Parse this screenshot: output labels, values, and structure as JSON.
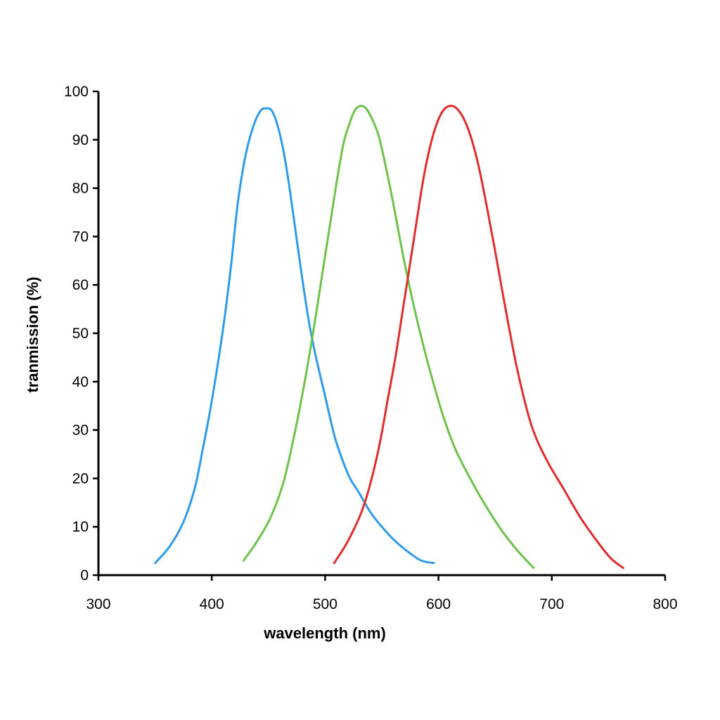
{
  "chart_data": {
    "type": "line",
    "xlabel": "wavelength (nm)",
    "ylabel": "tranmission (%)",
    "xlim": [
      300,
      800
    ],
    "ylim": [
      0,
      100
    ],
    "xticks": [
      300,
      400,
      500,
      600,
      700,
      800
    ],
    "yticks": [
      0,
      10,
      20,
      30,
      40,
      50,
      60,
      70,
      80,
      90,
      100
    ],
    "grid": false,
    "legend": "none",
    "series": [
      {
        "color": "#2e9bea",
        "x": [
          350,
          363,
          375,
          385,
          392,
          400,
          410,
          417,
          423,
          430,
          437,
          443,
          448,
          453,
          458,
          463,
          468,
          474,
          480,
          486,
          492,
          500,
          508,
          515,
          522,
          530,
          540,
          550,
          562,
          575,
          585,
          596
        ],
        "y": [
          2.5,
          6,
          11,
          18,
          26,
          36,
          51,
          64,
          77,
          87,
          93,
          96,
          96.5,
          96,
          93,
          88,
          81,
          71,
          61,
          52,
          45,
          37,
          29,
          24,
          20,
          17,
          13,
          10,
          7,
          4.5,
          3,
          2.5
        ]
      },
      {
        "color": "#6cc24a",
        "x": [
          428,
          440,
          452,
          463,
          471,
          478,
          485,
          492,
          498,
          504,
          510,
          516,
          521,
          526,
          531,
          536,
          541,
          547,
          553,
          560,
          568,
          576,
          585,
          594,
          604,
          615,
          628,
          640,
          655,
          670,
          684
        ],
        "y": [
          3,
          7,
          12,
          19,
          27,
          35,
          44,
          54,
          63,
          72,
          81,
          89,
          93,
          96,
          97,
          96.5,
          94.5,
          91,
          85,
          77,
          67,
          58,
          49,
          41,
          33,
          26,
          20,
          15,
          9.5,
          5,
          1.5
        ]
      },
      {
        "color": "#e02c2c",
        "x": [
          508,
          520,
          532,
          540,
          548,
          555,
          562,
          568,
          574,
          580,
          586,
          592,
          598,
          604,
          610,
          616,
          622,
          628,
          635,
          642,
          650,
          660,
          670,
          682,
          695,
          710,
          725,
          740,
          752,
          763
        ],
        "y": [
          2.5,
          7,
          13,
          19,
          27,
          36,
          45,
          54,
          63,
          72,
          81,
          88,
          93,
          96,
          97,
          96.5,
          94.5,
          91,
          85,
          77,
          67,
          54,
          42,
          31,
          24,
          18,
          12,
          7,
          3.5,
          1.5
        ]
      }
    ]
  }
}
